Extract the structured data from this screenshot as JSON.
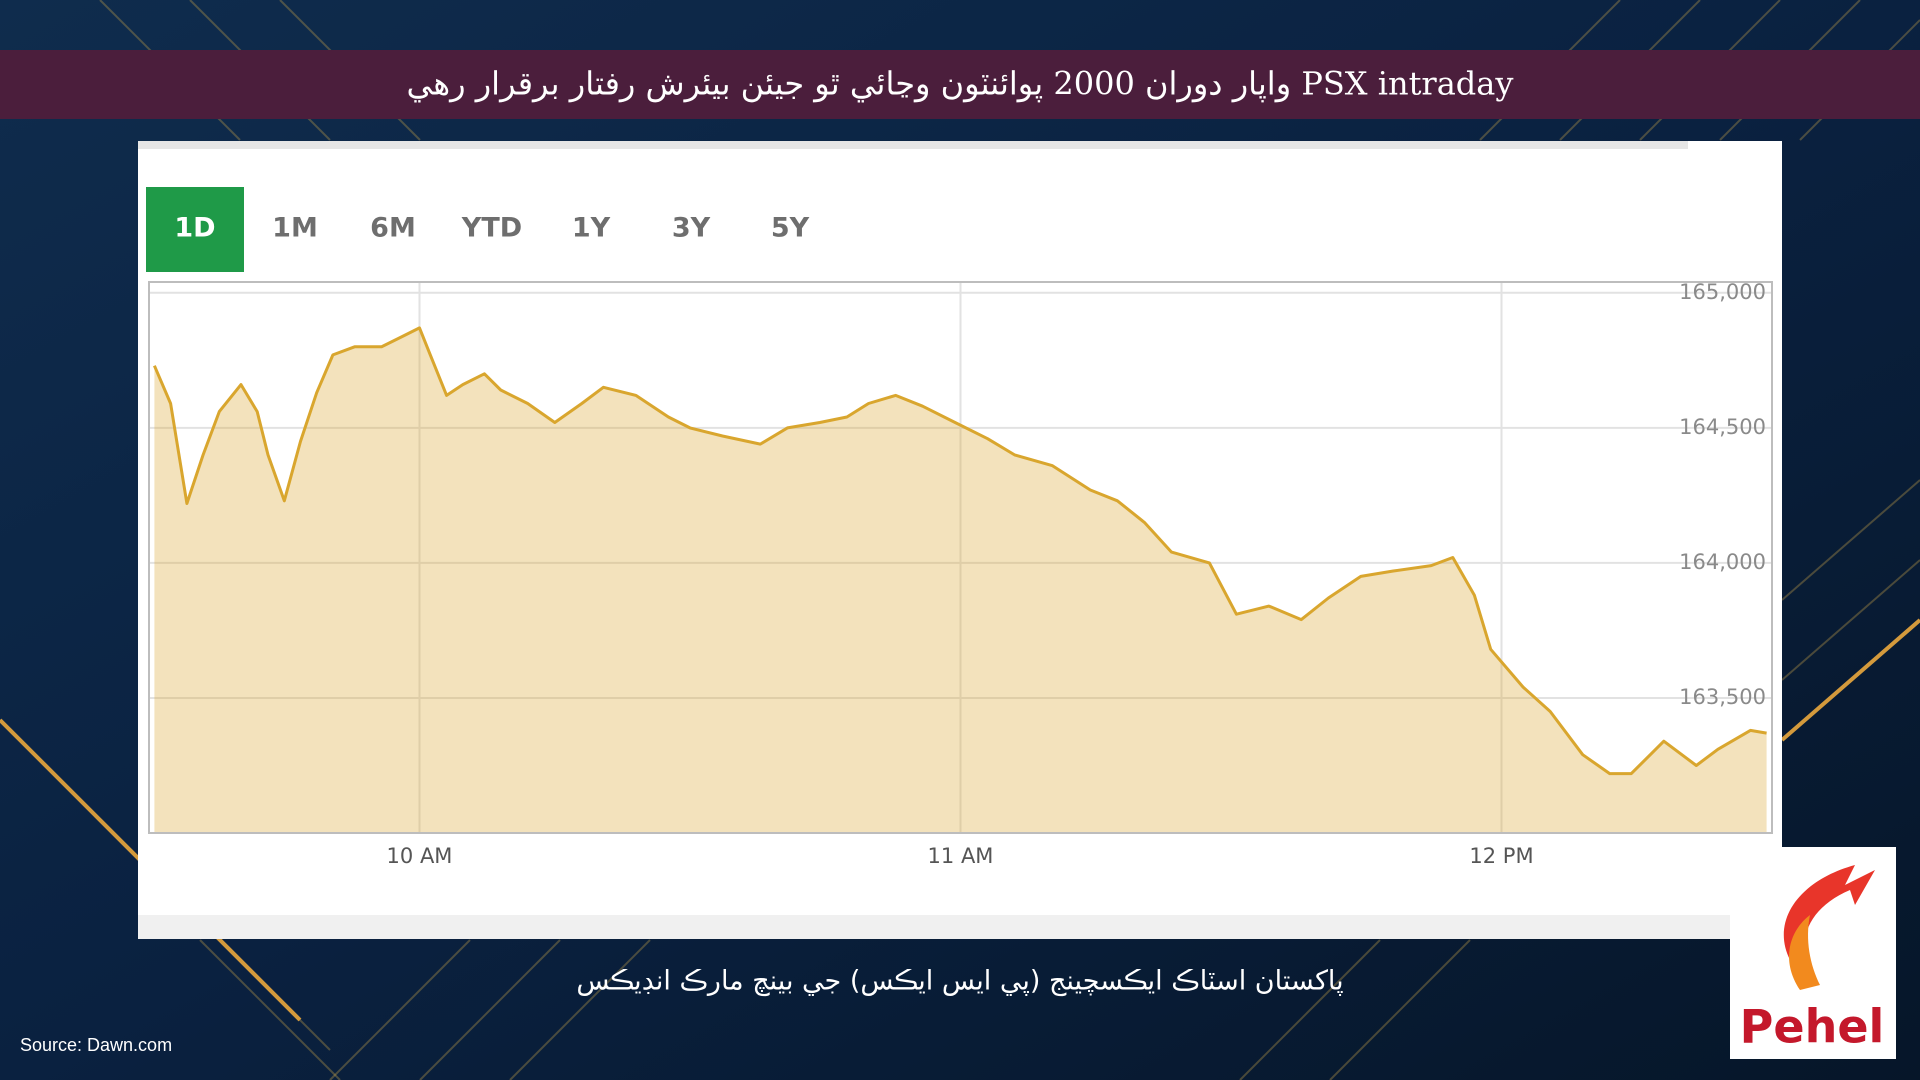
{
  "header": {
    "title": "PSX intraday واپار دوران 2000 پوائنٽون وڃائي ٿو جيئن بيئرش رفتار برقرار رهي"
  },
  "tabs": [
    "1D",
    "1M",
    "6M",
    "YTD",
    "1Y",
    "3Y",
    "5Y"
  ],
  "caption": "پاکستان اسٽاڪ ايڪسچينج (پي ايس ايڪس) جي بينچ مارڪ انڊيڪس",
  "source": "Source: Dawn.com",
  "logo": "Pehel",
  "chart_data": {
    "type": "area",
    "x": [
      9.51,
      9.54,
      9.57,
      9.6,
      9.63,
      9.67,
      9.7,
      9.72,
      9.75,
      9.78,
      9.81,
      9.84,
      9.88,
      9.93,
      9.97,
      10.0,
      10.02,
      10.05,
      10.08,
      10.12,
      10.15,
      10.2,
      10.25,
      10.3,
      10.34,
      10.4,
      10.46,
      10.5,
      10.56,
      10.63,
      10.68,
      10.74,
      10.79,
      10.83,
      10.88,
      10.93,
      10.99,
      11.05,
      11.1,
      11.17,
      11.24,
      11.29,
      11.34,
      11.39,
      11.46,
      11.51,
      11.57,
      11.63,
      11.68,
      11.74,
      11.8,
      11.87,
      11.91,
      11.95,
      11.98,
      12.04,
      12.09,
      12.15,
      12.2,
      12.24,
      12.3,
      12.36,
      12.4,
      12.46,
      12.49
    ],
    "values": [
      164730,
      164590,
      164220,
      164400,
      164560,
      164660,
      164560,
      164400,
      164230,
      164450,
      164630,
      164770,
      164800,
      164800,
      164840,
      164870,
      164770,
      164620,
      164660,
      164700,
      164640,
      164590,
      164520,
      164590,
      164650,
      164620,
      164540,
      164500,
      164470,
      164440,
      164500,
      164520,
      164540,
      164590,
      164620,
      164580,
      164520,
      164460,
      164400,
      164360,
      164270,
      164230,
      164150,
      164040,
      164000,
      163810,
      163840,
      163790,
      163870,
      163950,
      163970,
      163990,
      164020,
      163880,
      163680,
      163540,
      163450,
      163290,
      163220,
      163220,
      163340,
      163250,
      163310,
      163380,
      163370
    ],
    "color": "#d9a62e",
    "xlim": [
      9.5,
      12.5
    ],
    "xticks": [
      {
        "value": 10,
        "label": "10 AM"
      },
      {
        "value": 11,
        "label": "11 AM"
      },
      {
        "value": 12,
        "label": "12 PM"
      }
    ],
    "ylim": [
      163000,
      165040
    ],
    "yticks": [
      {
        "value": 163500,
        "label": "163,500"
      },
      {
        "value": 164000,
        "label": "164,000"
      },
      {
        "value": 164500,
        "label": "164,500"
      },
      {
        "value": 165000,
        "label": "165,000"
      }
    ],
    "grid": true
  }
}
